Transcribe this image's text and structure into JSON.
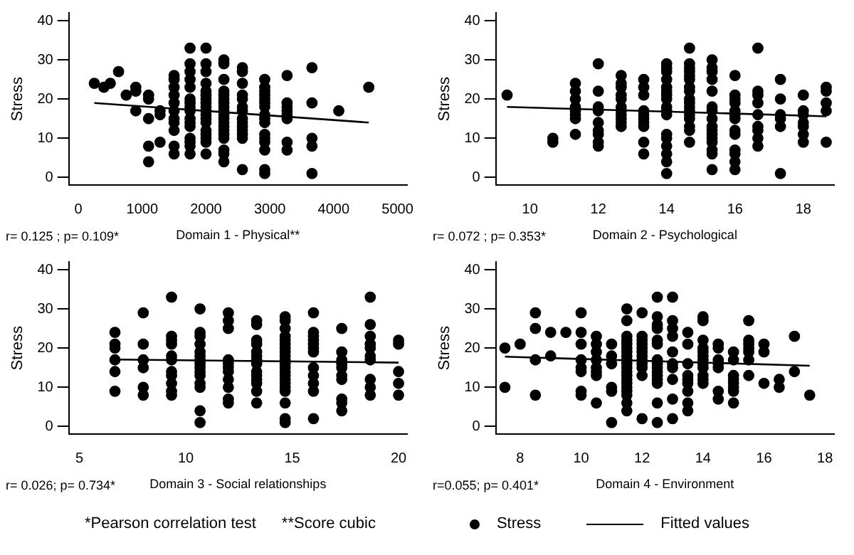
{
  "chart_data": [
    {
      "type": "scatter",
      "xlabel": "Domain 1 - Physical**",
      "ylabel": "Stress",
      "annotations": [
        "r= 0.125 ; p= 0.109*"
      ],
      "legend": "bottom",
      "xlim": [
        -150,
        5150
      ],
      "xticks": [
        0,
        1000,
        2000,
        3000,
        4000,
        5000
      ],
      "ylim": [
        -2,
        42
      ],
      "yticks": [
        0,
        10,
        20,
        30,
        40
      ],
      "series": [
        {
          "name": "Stress",
          "marker": "circle",
          "color": "#000000",
          "x": [
            250,
            400,
            500,
            630,
            750,
            900,
            900,
            900,
            1100,
            1100,
            1100,
            1100,
            1100,
            1280,
            1280,
            1280,
            1500,
            1500,
            1500,
            1500,
            1500,
            1500,
            1500,
            1500,
            1500,
            1500,
            1500,
            1750,
            1750,
            1750,
            1750,
            1750,
            1750,
            1750,
            1750,
            1750,
            1750,
            1750,
            1750,
            1750,
            1750,
            1750,
            1750,
            2000,
            2000,
            2000,
            2000,
            2000,
            2000,
            2000,
            2000,
            2000,
            2000,
            2000,
            2000,
            2000,
            2000,
            2000,
            2000,
            2000,
            2000,
            2280,
            2280,
            2280,
            2280,
            2280,
            2280,
            2280,
            2280,
            2280,
            2280,
            2280,
            2280,
            2280,
            2280,
            2280,
            2280,
            2280,
            2280,
            2280,
            2570,
            2570,
            2570,
            2570,
            2570,
            2570,
            2570,
            2570,
            2570,
            2570,
            2570,
            2570,
            2570,
            2570,
            2920,
            2920,
            2920,
            2920,
            2920,
            2920,
            2920,
            2920,
            2920,
            2920,
            2920,
            2920,
            2920,
            2920,
            2920,
            2920,
            3270,
            3270,
            3270,
            3270,
            3270,
            3270,
            3270,
            3270,
            3660,
            3660,
            3660,
            3660,
            3660,
            4080,
            4550
          ],
          "values": [
            24,
            23,
            24,
            27,
            21,
            23,
            22,
            17,
            21,
            20,
            15,
            8,
            4,
            17,
            16,
            9,
            26,
            25,
            23,
            21,
            19,
            17,
            15,
            14,
            12,
            8,
            6,
            33,
            29,
            27,
            25,
            23,
            20,
            19,
            18,
            17,
            15,
            14,
            13,
            10,
            9,
            8,
            6,
            33,
            29,
            27,
            24,
            22,
            21,
            20,
            19,
            18,
            17,
            16,
            15,
            14,
            12,
            11,
            10,
            9,
            6,
            30,
            29,
            25,
            22,
            21,
            20,
            19,
            18,
            17,
            16,
            15,
            14,
            13,
            12,
            11,
            10,
            7,
            6,
            4,
            28,
            27,
            24,
            21,
            20,
            18,
            17,
            15,
            14,
            13,
            12,
            11,
            10,
            2,
            25,
            23,
            22,
            21,
            20,
            19,
            18,
            16,
            15,
            14,
            11,
            10,
            9,
            7,
            2,
            1,
            26,
            19,
            18,
            17,
            16,
            15,
            9,
            7,
            28,
            19,
            10,
            8,
            1,
            17,
            23
          ]
        },
        {
          "name": "Fitted values",
          "type": "line",
          "marker": "none",
          "line_style": "solid",
          "color": "#000000",
          "x": [
            250,
            4550
          ],
          "values": [
            19,
            14
          ]
        }
      ]
    },
    {
      "type": "scatter",
      "xlabel": "Domain 2 - Psychological",
      "ylabel": "Stress",
      "annotations": [
        "r= 0.072 ; p= 0.353*"
      ],
      "xlim": [
        9,
        18.9
      ],
      "xticks": [
        10,
        12,
        14,
        16,
        18
      ],
      "ylim": [
        -2,
        42
      ],
      "yticks": [
        0,
        10,
        20,
        30,
        40
      ],
      "series": [
        {
          "marker": "circle",
          "color": "#000000",
          "x": [
            9.33,
            10.67,
            10.67,
            11.33,
            11.33,
            11.33,
            11.33,
            11.33,
            11.33,
            11.33,
            11.33,
            12,
            12,
            12,
            12,
            12,
            12,
            12,
            12,
            12,
            12.67,
            12.67,
            12.67,
            12.67,
            12.67,
            12.67,
            12.67,
            12.67,
            12.67,
            12.67,
            12.67,
            13.33,
            13.33,
            13.33,
            13.33,
            13.33,
            13.33,
            13.33,
            13.33,
            13.33,
            13.33,
            14,
            14,
            14,
            14,
            14,
            14,
            14,
            14,
            14,
            14,
            14,
            14,
            14,
            14,
            14,
            14,
            14,
            14.67,
            14.67,
            14.67,
            14.67,
            14.67,
            14.67,
            14.67,
            14.67,
            14.67,
            14.67,
            14.67,
            14.67,
            14.67,
            14.67,
            14.67,
            14.67,
            14.67,
            15.33,
            15.33,
            15.33,
            15.33,
            15.33,
            15.33,
            15.33,
            15.33,
            15.33,
            15.33,
            15.33,
            15.33,
            15.33,
            15.33,
            15.33,
            15.33,
            16,
            16,
            16,
            16,
            16,
            16,
            16,
            16,
            16,
            16,
            16,
            16,
            16,
            16.67,
            16.67,
            16.67,
            16.67,
            16.67,
            16.67,
            16.67,
            16.67,
            16.67,
            17.33,
            17.33,
            17.33,
            17.33,
            17.33,
            17.33,
            18,
            18,
            18,
            18,
            18,
            18,
            18,
            18.67,
            18.67,
            18.67,
            18.67,
            18.67
          ],
          "values": [
            21,
            10,
            9,
            24,
            22,
            20,
            18,
            17,
            16,
            15,
            11,
            29,
            22,
            18,
            17,
            14,
            12,
            11,
            9,
            8,
            26,
            24,
            23,
            21,
            20,
            18,
            17,
            16,
            15,
            14,
            13,
            25,
            23,
            21,
            17,
            16,
            15,
            14,
            13,
            9,
            6,
            29,
            28,
            27,
            25,
            23,
            22,
            21,
            20,
            18,
            17,
            16,
            11,
            10,
            8,
            6,
            4,
            1,
            33,
            29,
            28,
            27,
            26,
            25,
            23,
            22,
            20,
            19,
            18,
            17,
            16,
            15,
            13,
            12,
            9,
            30,
            28,
            27,
            25,
            22,
            18,
            17,
            15,
            13,
            12,
            11,
            10,
            9,
            7,
            6,
            2,
            26,
            21,
            20,
            19,
            17,
            16,
            15,
            12,
            11,
            7,
            6,
            4,
            2,
            33,
            22,
            21,
            19,
            16,
            13,
            12,
            10,
            8,
            25,
            20,
            16,
            15,
            13,
            1,
            21,
            17,
            16,
            14,
            13,
            11,
            9,
            23,
            22,
            19,
            17,
            9
          ]
        },
        {
          "type": "line",
          "marker": "none",
          "line_style": "solid",
          "color": "#000000",
          "x": [
            9.33,
            18.67
          ],
          "values": [
            18,
            15.6
          ]
        }
      ]
    },
    {
      "type": "scatter",
      "xlabel": "Domain 3 - Social relationships",
      "ylabel": "Stress",
      "annotations": [
        "r= 0.026; p= 0.734*"
      ],
      "xlim": [
        4.5,
        20.4
      ],
      "xticks": [
        5,
        10,
        15,
        20
      ],
      "ylim": [
        -2,
        42
      ],
      "yticks": [
        0,
        10,
        20,
        30,
        40
      ],
      "series": [
        {
          "marker": "circle",
          "color": "#000000",
          "x": [
            6.67,
            6.67,
            6.67,
            6.67,
            6.67,
            6.67,
            8,
            8,
            8,
            8,
            8,
            8,
            9.33,
            9.33,
            9.33,
            9.33,
            9.33,
            9.33,
            9.33,
            9.33,
            9.33,
            9.33,
            9.33,
            10.67,
            10.67,
            10.67,
            10.67,
            10.67,
            10.67,
            10.67,
            10.67,
            10.67,
            10.67,
            10.67,
            10.67,
            10.67,
            10.67,
            10.67,
            12,
            12,
            12,
            12,
            12,
            12,
            12,
            12,
            12,
            12,
            12,
            13.33,
            13.33,
            13.33,
            13.33,
            13.33,
            13.33,
            13.33,
            13.33,
            13.33,
            13.33,
            13.33,
            13.33,
            13.33,
            13.33,
            14.67,
            14.67,
            14.67,
            14.67,
            14.67,
            14.67,
            14.67,
            14.67,
            14.67,
            14.67,
            14.67,
            14.67,
            14.67,
            14.67,
            14.67,
            14.67,
            14.67,
            14.67,
            14.67,
            14.67,
            14.67,
            16,
            16,
            16,
            16,
            16,
            16,
            16,
            16,
            16,
            16,
            16,
            16,
            17.33,
            17.33,
            17.33,
            17.33,
            17.33,
            17.33,
            17.33,
            17.33,
            17.33,
            17.33,
            18.67,
            18.67,
            18.67,
            18.67,
            18.67,
            18.67,
            18.67,
            18.67,
            18.67,
            18.67,
            20,
            20,
            20,
            20,
            20
          ],
          "values": [
            24,
            21,
            20,
            17,
            14,
            9,
            29,
            21,
            17,
            15,
            10,
            8,
            33,
            23,
            22,
            21,
            18,
            17,
            14,
            13,
            11,
            9,
            8,
            30,
            24,
            23,
            21,
            19,
            18,
            17,
            16,
            15,
            14,
            13,
            11,
            10,
            4,
            1,
            29,
            27,
            25,
            17,
            16,
            15,
            14,
            12,
            10,
            7,
            6,
            27,
            26,
            22,
            21,
            19,
            18,
            17,
            16,
            14,
            13,
            12,
            11,
            9,
            6,
            28,
            27,
            25,
            23,
            22,
            21,
            20,
            19,
            18,
            17,
            16,
            15,
            14,
            13,
            12,
            11,
            10,
            9,
            6,
            2,
            1,
            29,
            24,
            23,
            22,
            21,
            20,
            19,
            15,
            13,
            11,
            9,
            2,
            25,
            19,
            17,
            16,
            15,
            13,
            12,
            7,
            6,
            4,
            33,
            26,
            23,
            21,
            20,
            18,
            17,
            12,
            10,
            8,
            22,
            21,
            14,
            11,
            8
          ]
        },
        {
          "type": "line",
          "marker": "none",
          "line_style": "solid",
          "color": "#000000",
          "x": [
            6.67,
            20
          ],
          "values": [
            17.1,
            16.3
          ]
        }
      ]
    },
    {
      "type": "scatter",
      "xlabel": "Domain 4 - Environment",
      "ylabel": "Stress",
      "annotations": [
        "r=0.055; p= 0.401*",
        "*Pearson correlation test",
        "**Score cubic"
      ],
      "xlim": [
        7.2,
        18.3
      ],
      "xticks": [
        8,
        10,
        12,
        14,
        16,
        18
      ],
      "ylim": [
        -2,
        42
      ],
      "yticks": [
        0,
        10,
        20,
        30,
        40
      ],
      "series": [
        {
          "marker": "circle",
          "color": "#000000",
          "x": [
            7.5,
            7.5,
            8,
            8.5,
            8.5,
            8.5,
            8.5,
            9,
            9,
            9.5,
            10,
            10,
            10,
            10,
            10,
            10,
            10,
            10,
            10.5,
            10.5,
            10.5,
            10.5,
            10.5,
            10.5,
            10.5,
            10.5,
            11,
            11,
            11,
            11,
            11,
            11,
            11.5,
            11.5,
            11.5,
            11.5,
            11.5,
            11.5,
            11.5,
            11.5,
            11.5,
            11.5,
            11.5,
            11.5,
            11.5,
            11.5,
            11.5,
            11.5,
            11.5,
            11.5,
            11.5,
            11.5,
            12,
            12,
            12,
            12,
            12,
            12,
            12,
            12,
            12,
            12,
            12,
            12,
            12.5,
            12.5,
            12.5,
            12.5,
            12.5,
            12.5,
            12.5,
            12.5,
            12.5,
            12.5,
            12.5,
            12.5,
            12.5,
            12.5,
            12.5,
            13,
            13,
            13,
            13,
            13,
            13,
            13,
            13,
            13,
            13,
            13.5,
            13.5,
            13.5,
            13.5,
            13.5,
            13.5,
            13.5,
            13.5,
            13.5,
            14,
            14,
            14,
            14,
            14,
            14,
            14,
            14,
            14,
            14,
            14,
            14,
            14.5,
            14.5,
            14.5,
            14.5,
            14.5,
            14.5,
            14.5,
            15,
            15,
            15,
            15,
            15,
            15,
            15,
            15,
            15.5,
            15.5,
            15.5,
            15.5,
            15.5,
            15.5,
            15.5,
            16,
            16,
            16,
            16.5,
            16.5,
            17,
            17,
            17.5
          ],
          "values": [
            20,
            10,
            21,
            29,
            25,
            17,
            8,
            24,
            18,
            24,
            29,
            24,
            21,
            17,
            15,
            14,
            9,
            8,
            23,
            21,
            19,
            17,
            15,
            14,
            13,
            6,
            21,
            18,
            16,
            10,
            9,
            1,
            30,
            27,
            23,
            22,
            21,
            20,
            19,
            18,
            17,
            16,
            15,
            14,
            13,
            12,
            11,
            10,
            9,
            8,
            6,
            4,
            29,
            23,
            22,
            21,
            20,
            19,
            18,
            17,
            16,
            15,
            13,
            2,
            33,
            28,
            26,
            25,
            22,
            21,
            17,
            16,
            15,
            14,
            13,
            12,
            11,
            6,
            1,
            33,
            27,
            25,
            23,
            19,
            16,
            15,
            12,
            7,
            2,
            24,
            21,
            16,
            13,
            12,
            11,
            9,
            6,
            4,
            28,
            27,
            22,
            20,
            19,
            18,
            17,
            16,
            15,
            13,
            12,
            11,
            21,
            20,
            17,
            16,
            15,
            9,
            7,
            19,
            17,
            13,
            12,
            11,
            10,
            9,
            6,
            27,
            22,
            21,
            20,
            19,
            17,
            13,
            21,
            19,
            11,
            12,
            10,
            23,
            14,
            8
          ]
        },
        {
          "type": "line",
          "marker": "none",
          "line_style": "solid",
          "color": "#000000",
          "x": [
            7.5,
            17.5
          ],
          "values": [
            17.8,
            15.5
          ]
        }
      ]
    }
  ]
}
